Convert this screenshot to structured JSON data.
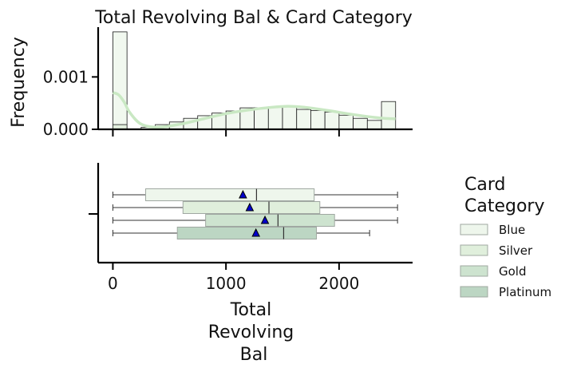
{
  "chart_data": [
    {
      "type": "histogram",
      "title": "Total Revolving Bal & Card Category",
      "ylabel": "Frequency",
      "xlim": [
        -130,
        2650
      ],
      "ylim": [
        0,
        0.00195
      ],
      "y_ticks": [
        "0.000",
        "0.001"
      ],
      "y_tick_values": [
        0,
        0.001
      ],
      "x_ticks_values": [
        0,
        1000,
        2000
      ],
      "bin_width": 125,
      "bins_x_start": [
        0,
        125,
        250,
        375,
        500,
        625,
        750,
        875,
        1000,
        1125,
        1250,
        1375,
        1500,
        1625,
        1750,
        1875,
        2000,
        2125,
        2250,
        2375
      ],
      "frequency": [
        0.00186,
        1e-05,
        4e-05,
        9e-05,
        0.00014,
        0.00021,
        0.00026,
        0.00031,
        0.00035,
        0.00041,
        0.00041,
        0.00043,
        0.00043,
        0.00038,
        0.00036,
        0.00033,
        0.00027,
        0.00021,
        0.00017,
        0.00053
      ],
      "inner_bar_x": 0,
      "inner_bar_value": 9e-05,
      "kde_x": [
        0,
        50,
        100,
        150,
        250,
        400,
        600,
        800,
        1000,
        1200,
        1400,
        1550,
        1700,
        1900,
        2100,
        2300,
        2400,
        2500
      ],
      "kde_y": [
        0.0007,
        0.00066,
        0.00052,
        0.00032,
        0.0001,
        4e-05,
        0.0001,
        0.0002,
        0.0003,
        0.00037,
        0.00042,
        0.00044,
        0.00042,
        0.00036,
        0.00029,
        0.00023,
        0.00021,
        0.0002
      ]
    },
    {
      "type": "boxplot",
      "xlabel": "Total\nRevolving\nBal",
      "x_ticks": [
        "0",
        "1000",
        "2000"
      ],
      "x_tick_values": [
        0,
        1000,
        2000
      ],
      "xlim": [
        -130,
        2650
      ],
      "legend_title": "Card\nCategory",
      "legend_placement": "right",
      "series": [
        {
          "name": "Blue",
          "color": "#eef6ec",
          "whisker_low": 0,
          "q1": 290,
          "median": 1270,
          "q3": 1780,
          "whisker_high": 2517,
          "mean": 1150
        },
        {
          "name": "Silver",
          "color": "#e0efdc",
          "whisker_low": 0,
          "q1": 620,
          "median": 1380,
          "q3": 1830,
          "whisker_high": 2517,
          "mean": 1210
        },
        {
          "name": "Gold",
          "color": "#cde3cf",
          "whisker_low": 0,
          "q1": 820,
          "median": 1460,
          "q3": 1960,
          "whisker_high": 2517,
          "mean": 1345
        },
        {
          "name": "Platinum",
          "color": "#bcd6c3",
          "whisker_low": 0,
          "q1": 570,
          "median": 1510,
          "q3": 1800,
          "whisker_high": 2270,
          "mean": 1265
        }
      ]
    }
  ]
}
